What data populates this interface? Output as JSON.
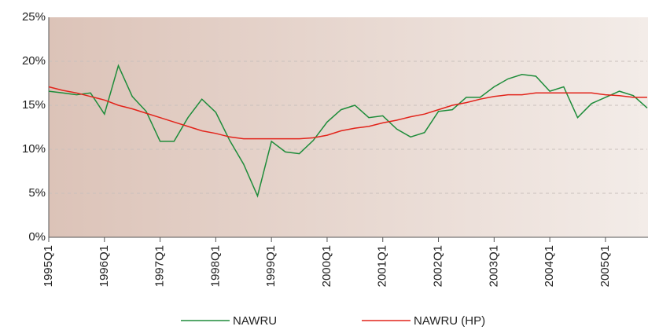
{
  "chart_data": {
    "type": "line",
    "categories": [
      "1995Q1",
      null,
      null,
      null,
      "1996Q1",
      null,
      null,
      null,
      "1997Q1",
      null,
      null,
      null,
      "1998Q1",
      null,
      null,
      null,
      "1999Q1",
      null,
      null,
      null,
      "2000Q1",
      null,
      null,
      null,
      "2001Q1",
      null,
      null,
      null,
      "2002Q1",
      null,
      null,
      null,
      "2003Q1",
      null,
      null,
      null,
      "2004Q1",
      null,
      null,
      null,
      "2005Q1",
      null,
      null,
      null
    ],
    "series": [
      {
        "name": "NAWRU",
        "color": "#1e8c3a",
        "values": [
          16.6,
          16.4,
          16.2,
          16.4,
          14.0,
          19.5,
          16.0,
          14.3,
          10.9,
          10.9,
          13.6,
          15.7,
          14.2,
          11.0,
          8.3,
          4.7,
          10.9,
          9.7,
          9.5,
          11.0,
          13.1,
          14.5,
          15.0,
          13.6,
          13.8,
          12.3,
          11.4,
          11.9,
          14.3,
          14.5,
          15.9,
          15.9,
          17.1,
          18.0,
          18.5,
          18.3,
          16.6,
          17.1,
          13.6,
          15.2,
          15.9,
          16.6,
          16.1,
          14.7
        ]
      },
      {
        "name": "NAWRU (HP)",
        "color": "#e2231a",
        "values": [
          17.1,
          16.7,
          16.4,
          16.0,
          15.6,
          15.0,
          14.6,
          14.1,
          13.6,
          13.1,
          12.6,
          12.1,
          11.8,
          11.4,
          11.2,
          11.2,
          11.2,
          11.2,
          11.2,
          11.3,
          11.6,
          12.1,
          12.4,
          12.6,
          13.0,
          13.3,
          13.7,
          14.0,
          14.5,
          15.0,
          15.3,
          15.7,
          16.0,
          16.2,
          16.2,
          16.4,
          16.4,
          16.4,
          16.4,
          16.4,
          16.2,
          16.1,
          15.9,
          15.9
        ]
      }
    ],
    "ylim": [
      0,
      25
    ],
    "yticks": [
      {
        "value": 0,
        "label": "0%"
      },
      {
        "value": 5,
        "label": "5%"
      },
      {
        "value": 10,
        "label": "10%"
      },
      {
        "value": 15,
        "label": "15%"
      },
      {
        "value": 20,
        "label": "20%"
      },
      {
        "value": 25,
        "label": "25%"
      }
    ],
    "grid": true,
    "legend": "bottom"
  }
}
